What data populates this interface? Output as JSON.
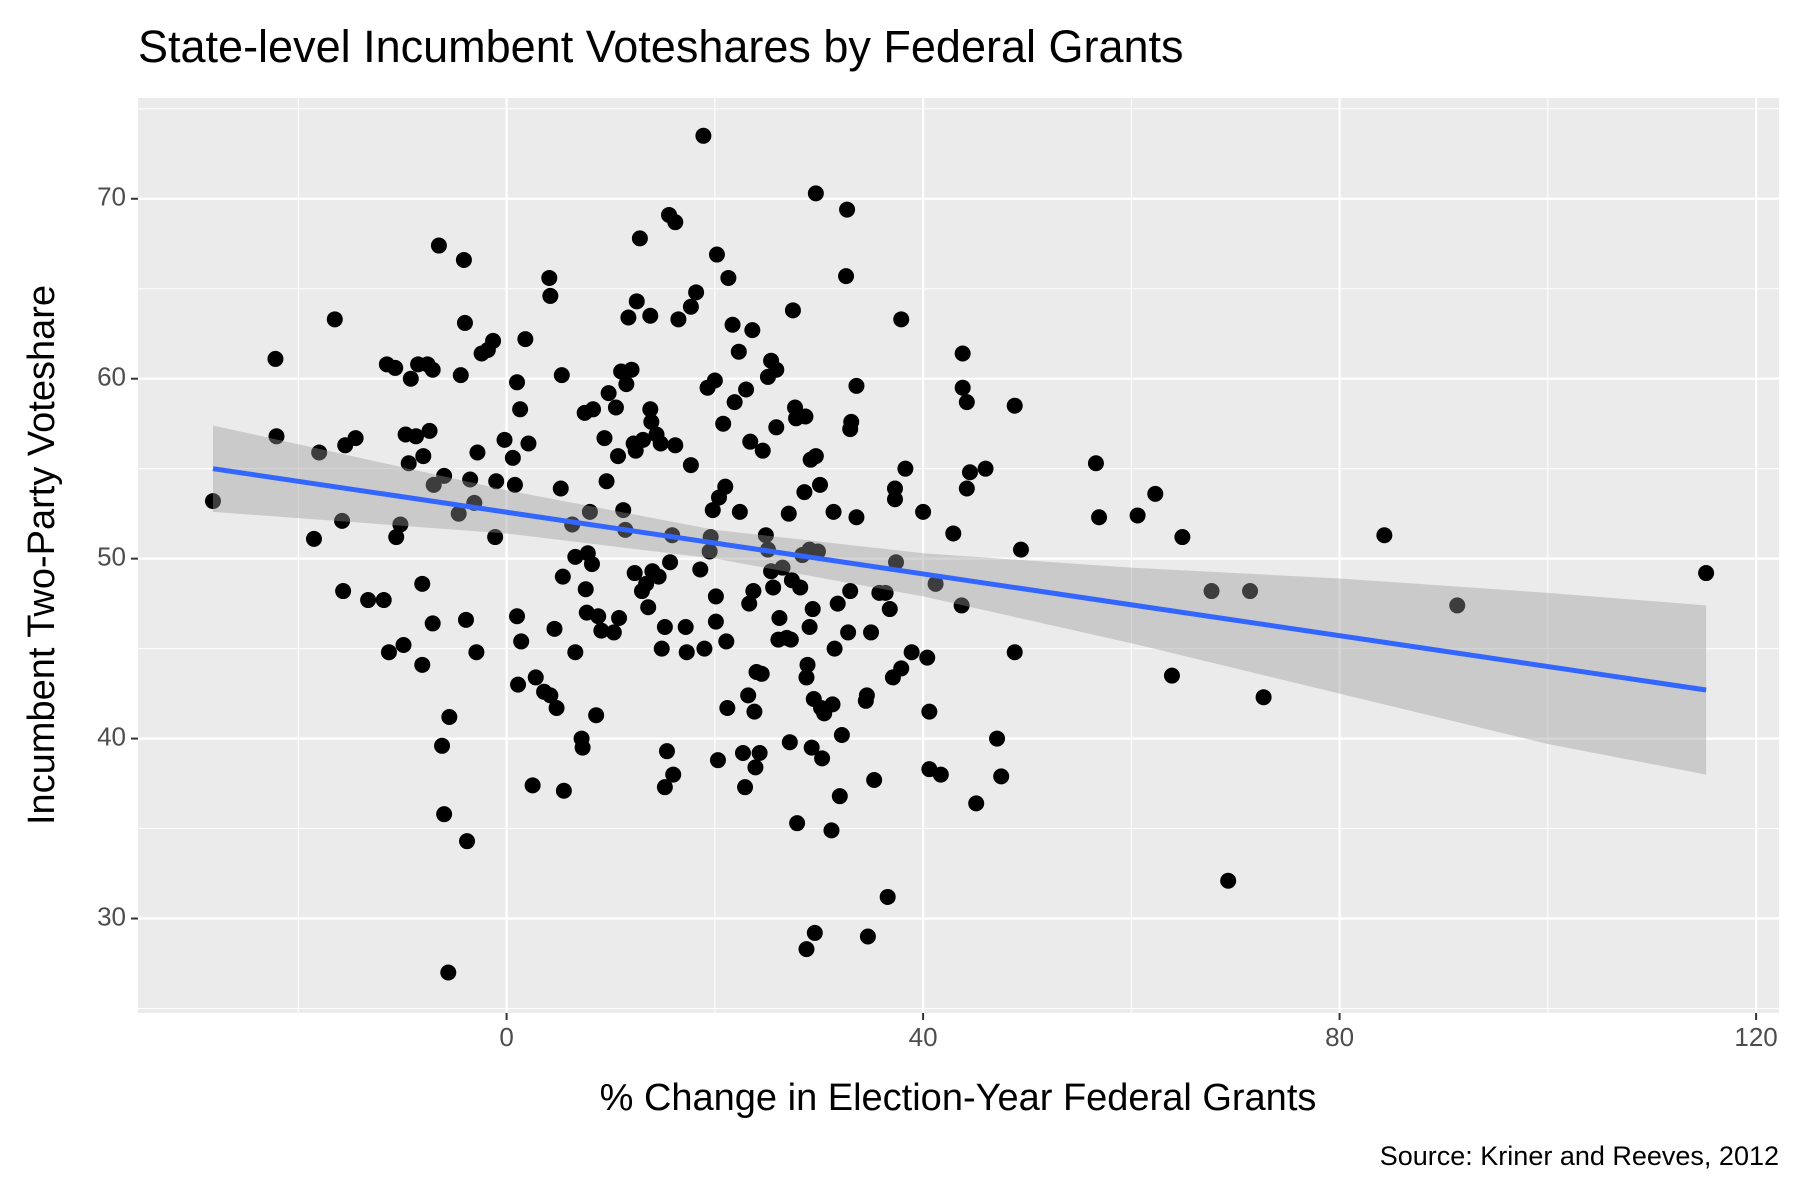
{
  "chart_data": {
    "type": "scatter",
    "title": "State-level Incumbent Voteshares by Federal Grants",
    "x_label": "% Change in Election-Year Federal Grants",
    "y_label": "Incumbent Two-Party Voteshare",
    "caption": "Source: Kriner and Reeves, 2012",
    "color": "#000000",
    "x": [
      -28.2,
      -22.2,
      -22.1,
      -18.5,
      -18.0,
      -16.5,
      -15.8,
      -15.7,
      -15.5,
      -14.5,
      -13.3,
      -11.8,
      -11.5,
      -11.3,
      -10.7,
      -10.6,
      -10.2,
      -9.9,
      -9.7,
      -9.4,
      -9.2,
      -8.7,
      -8.5,
      -8.1,
      -8.1,
      -8.0,
      -7.6,
      -7.4,
      -7.1,
      -7.1,
      -7.0,
      -6.5,
      -6.2,
      -6.0,
      -6.0,
      -5.5,
      -5.6,
      -4.6,
      -4.4,
      -4.1,
      -4.0,
      -3.9,
      -3.8,
      -3.5,
      -3.1,
      -2.9,
      -2.8,
      -2.4,
      -1.8,
      -1.3,
      -1.1,
      -1.0,
      -0.2,
      0.6,
      0.8,
      1.0,
      1.0,
      1.1,
      1.3,
      1.4,
      1.8,
      2.1,
      2.5,
      2.8,
      3.6,
      4.1,
      4.2,
      4.2,
      4.6,
      4.8,
      5.2,
      5.3,
      5.4,
      5.5,
      6.3,
      6.6,
      6.6,
      7.2,
      7.3,
      7.5,
      7.6,
      7.7,
      7.8,
      8.0,
      8.2,
      8.3,
      8.6,
      8.8,
      9.1,
      9.4,
      9.6,
      9.8,
      10.3,
      10.5,
      10.7,
      10.8,
      11.0,
      11.2,
      11.4,
      11.5,
      11.7,
      12.0,
      12.2,
      12.3,
      12.4,
      12.5,
      12.8,
      13.0,
      13.1,
      13.4,
      13.6,
      13.8,
      13.8,
      13.9,
      14.0,
      14.4,
      14.6,
      14.8,
      14.9,
      15.2,
      15.4,
      15.2,
      15.6,
      15.7,
      15.9,
      16.0,
      16.2,
      16.2,
      16.5,
      17.2,
      17.3,
      17.7,
      17.7,
      18.2,
      18.6,
      18.9,
      19.0,
      19.3,
      19.5,
      19.6,
      19.8,
      20.0,
      20.1,
      20.1,
      20.2,
      20.3,
      20.4,
      20.8,
      21.0,
      21.1,
      21.2,
      21.3,
      21.7,
      21.9,
      22.3,
      22.4,
      22.7,
      22.9,
      23.0,
      23.2,
      23.3,
      23.4,
      23.6,
      23.7,
      23.8,
      23.9,
      24.0,
      24.3,
      24.5,
      24.6,
      24.9,
      25.1,
      25.1,
      25.4,
      25.4,
      25.6,
      25.9,
      25.9,
      26.1,
      26.2,
      26.5,
      26.9,
      27.1,
      27.2,
      27.3,
      27.4,
      27.5,
      27.7,
      27.8,
      27.9,
      28.2,
      28.4,
      28.6,
      28.7,
      28.8,
      28.8,
      28.9,
      29.1,
      29.1,
      29.2,
      29.3,
      29.4,
      29.5,
      29.6,
      29.7,
      29.7,
      29.9,
      30.1,
      30.2,
      30.3,
      30.5,
      31.2,
      31.3,
      31.4,
      31.5,
      31.8,
      32.0,
      32.2,
      32.6,
      32.7,
      32.8,
      33.0,
      33.0,
      33.1,
      33.6,
      33.6,
      34.5,
      34.6,
      34.7,
      35.0,
      35.3,
      35.8,
      36.4,
      36.6,
      36.8,
      37.1,
      37.3,
      37.3,
      37.4,
      37.9,
      37.9,
      38.3,
      38.9,
      40.0,
      40.4,
      40.6,
      40.6,
      41.2,
      41.7,
      42.9,
      43.7,
      43.8,
      43.8,
      44.2,
      44.2,
      44.5,
      45.1,
      46.0,
      47.1,
      47.5,
      48.8,
      48.8,
      49.4,
      56.6,
      56.9,
      60.6,
      62.3,
      63.9,
      64.9,
      67.7,
      69.3,
      71.4,
      72.7,
      84.3,
      91.3,
      115.2
    ],
    "values": [
      53.2,
      61.1,
      56.8,
      51.1,
      55.9,
      63.3,
      52.1,
      48.2,
      56.3,
      56.7,
      47.7,
      47.7,
      60.8,
      44.8,
      60.6,
      51.2,
      51.9,
      45.2,
      56.9,
      55.3,
      60.0,
      56.8,
      60.8,
      48.6,
      44.1,
      55.7,
      60.8,
      57.1,
      60.5,
      46.4,
      54.1,
      67.4,
      39.6,
      54.6,
      35.8,
      41.2,
      27.0,
      52.5,
      60.2,
      66.6,
      63.1,
      46.6,
      34.3,
      54.4,
      53.1,
      44.8,
      55.9,
      61.4,
      61.6,
      62.1,
      51.2,
      54.3,
      56.6,
      55.6,
      54.1,
      59.8,
      46.8,
      43.0,
      58.3,
      45.4,
      62.2,
      56.4,
      37.4,
      43.4,
      42.6,
      65.6,
      64.6,
      42.4,
      46.1,
      41.7,
      53.9,
      60.2,
      49.0,
      37.1,
      51.9,
      44.8,
      50.1,
      40.0,
      39.5,
      58.1,
      48.3,
      47.0,
      50.3,
      52.6,
      49.7,
      58.3,
      41.3,
      46.8,
      46.0,
      56.7,
      54.3,
      59.2,
      45.9,
      58.4,
      55.7,
      46.7,
      60.4,
      52.7,
      51.6,
      59.7,
      63.4,
      60.5,
      56.4,
      49.2,
      56.0,
      64.3,
      67.8,
      48.2,
      56.6,
      48.6,
      47.3,
      63.5,
      58.3,
      57.6,
      49.3,
      56.9,
      49.0,
      56.4,
      45.0,
      46.2,
      39.3,
      37.3,
      69.1,
      49.8,
      51.3,
      38.0,
      68.7,
      56.3,
      63.3,
      46.2,
      44.8,
      55.2,
      64.0,
      64.8,
      49.4,
      73.5,
      45.0,
      59.5,
      50.4,
      51.2,
      52.7,
      59.9,
      47.9,
      46.5,
      66.9,
      38.8,
      53.4,
      57.5,
      54.0,
      45.4,
      41.7,
      65.6,
      63.0,
      58.7,
      61.5,
      52.6,
      39.2,
      37.3,
      59.4,
      42.4,
      47.5,
      56.5,
      62.7,
      48.2,
      41.5,
      38.4,
      43.7,
      39.2,
      43.6,
      56.0,
      51.3,
      50.5,
      60.1,
      61.0,
      49.3,
      48.4,
      57.3,
      60.5,
      45.5,
      46.7,
      49.5,
      45.6,
      52.5,
      39.8,
      45.5,
      48.8,
      63.8,
      58.4,
      57.8,
      35.3,
      48.4,
      50.2,
      53.7,
      57.9,
      43.4,
      28.3,
      44.1,
      46.2,
      50.5,
      55.5,
      39.5,
      47.2,
      42.2,
      29.2,
      55.7,
      70.3,
      50.4,
      54.1,
      41.7,
      38.9,
      41.4,
      34.9,
      41.9,
      52.6,
      45.0,
      47.5,
      36.8,
      40.2,
      65.7,
      69.4,
      45.9,
      57.2,
      48.2,
      57.6,
      59.6,
      52.3,
      42.1,
      42.4,
      29.0,
      45.9,
      37.7,
      48.1,
      48.1,
      31.2,
      47.2,
      43.4,
      53.3,
      53.9,
      49.8,
      43.9,
      63.3,
      55.0,
      44.8,
      52.6,
      44.5,
      41.5,
      38.3,
      48.6,
      38.0,
      51.4,
      47.4,
      61.4,
      59.5,
      53.9,
      58.7,
      54.8,
      36.4,
      55.0,
      40.0,
      37.9,
      44.8,
      58.5,
      50.5,
      55.3,
      52.3,
      52.4,
      53.6,
      43.5,
      51.2,
      48.2,
      32.1,
      48.2,
      42.3,
      51.3,
      47.4,
      49.2
    ],
    "trend_line": {
      "color": "#3366ff",
      "x": [
        -28.2,
        115.2
      ],
      "values": [
        55.0,
        42.7
      ]
    },
    "band": {
      "color": "#999999",
      "x": [
        -28.2,
        0,
        20,
        40,
        60,
        80,
        100,
        115.2
      ],
      "upper": [
        57.4,
        53.8,
        51.6,
        50.3,
        49.5,
        48.9,
        48.1,
        47.4
      ],
      "lower": [
        52.6,
        51.4,
        50.0,
        47.9,
        45.3,
        42.5,
        39.7,
        38.0
      ]
    },
    "xlim": [
      -35.4,
      122.2
    ],
    "ylim": [
      24.75,
      75.6
    ],
    "xticks": [
      0,
      40,
      80,
      120
    ],
    "yticks": [
      30,
      40,
      50,
      60,
      70
    ],
    "minor_xticks": [
      -20,
      20,
      60,
      100
    ],
    "minor_yticks": [
      25,
      35,
      45,
      55,
      65,
      75
    ],
    "grid": true
  }
}
